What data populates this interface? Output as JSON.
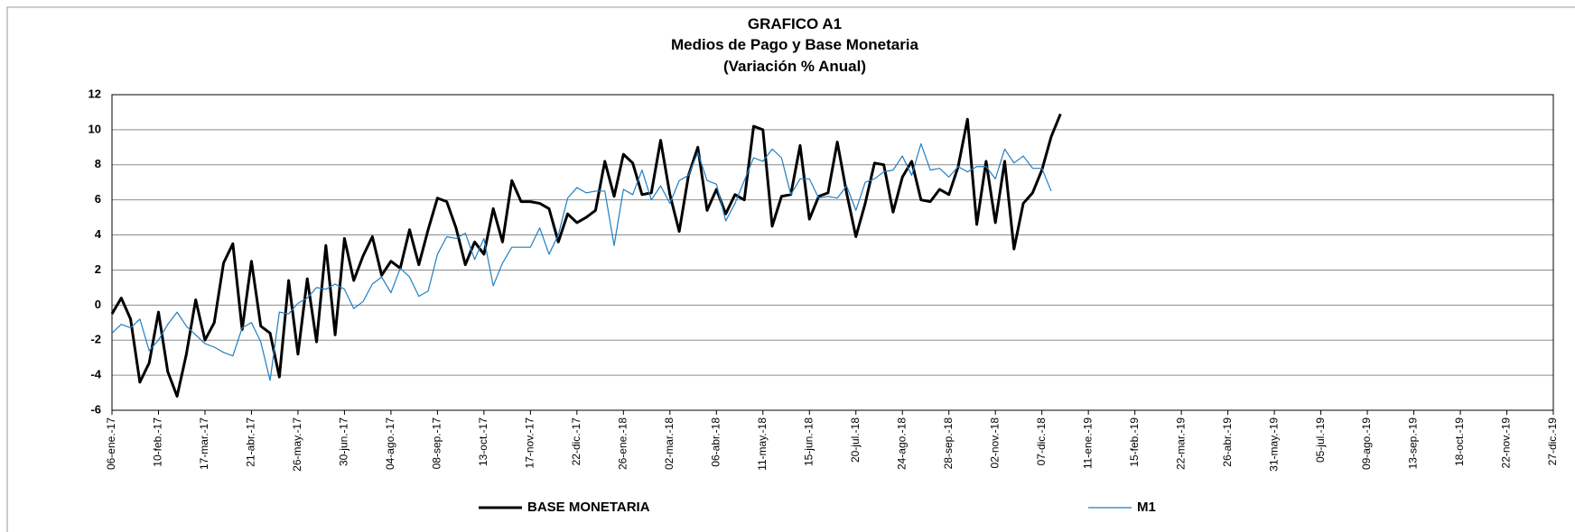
{
  "chart_data": {
    "type": "line",
    "title": [
      "GRAFICO A1",
      "Medios de Pago y Base Monetaria",
      "(Variación % Anual)"
    ],
    "categories": [
      "06-ene.-17",
      null,
      null,
      null,
      null,
      "10-feb.-17",
      null,
      null,
      null,
      null,
      "17-mar.-17",
      null,
      null,
      null,
      null,
      "21-abr.-17",
      null,
      null,
      null,
      null,
      "26-may.-17",
      null,
      null,
      null,
      null,
      "30-jun.-17",
      null,
      null,
      null,
      null,
      "04-ago.-17",
      null,
      null,
      null,
      null,
      "08-sep.-17",
      null,
      null,
      null,
      null,
      "13-oct.-17",
      null,
      null,
      null,
      null,
      "17-nov.-17",
      null,
      null,
      null,
      null,
      "22-dic.-17",
      null,
      null,
      null,
      null,
      "26-ene.-18",
      null,
      null,
      null,
      null,
      "02-mar.-18",
      null,
      null,
      null,
      null,
      "06-abr.-18",
      null,
      null,
      null,
      null,
      "11-may.-18",
      null,
      null,
      null,
      null,
      "15-jun.-18",
      null,
      null,
      null,
      null,
      "20-jul.-18",
      null,
      null,
      null,
      null,
      "24-ago.-18",
      null,
      null,
      null,
      null,
      "28-sep.-18",
      null,
      null,
      null,
      null,
      "02-nov.-18",
      null,
      null,
      null,
      null,
      "07-dic.-18",
      null,
      null,
      null,
      null,
      "11-ene.-19",
      null,
      null,
      null,
      null,
      "15-feb.-19",
      null,
      null,
      null,
      null,
      "22-mar.-19",
      null,
      null,
      null,
      null,
      "26-abr.-19",
      null,
      null,
      null,
      null,
      "31-may.-19",
      null,
      null,
      null,
      null,
      "05-jul.-19",
      null,
      null,
      null,
      null,
      "09-ago.-19",
      null,
      null,
      null,
      null,
      "13-sep.-19",
      null,
      null,
      null,
      null,
      "18-oct.-19",
      null,
      null,
      null,
      null,
      "22-nov.-19",
      null,
      null,
      null,
      null,
      "27-dic.-19"
    ],
    "series": [
      {
        "name": "BASE MONETARIA",
        "color": "#000000",
        "width": 3,
        "values": [
          -0.5,
          0.4,
          -0.8,
          -4.4,
          -3.3,
          -0.4,
          -3.8,
          -5.2,
          -2.8,
          0.3,
          -2.0,
          -1.0,
          2.4,
          3.5,
          -1.4,
          2.5,
          -1.2,
          -1.6,
          -4.1,
          1.4,
          -2.8,
          1.5,
          -2.1,
          3.4,
          -1.7,
          3.8,
          1.4,
          2.8,
          3.9,
          1.7,
          2.5,
          2.1,
          4.3,
          2.3,
          4.3,
          6.1,
          5.9,
          4.4,
          2.3,
          3.6,
          2.9,
          5.5,
          3.6,
          7.1,
          5.9,
          5.9,
          5.8,
          5.5,
          3.6,
          5.2,
          4.7,
          5.0,
          5.4,
          8.2,
          6.2,
          8.6,
          8.1,
          6.3,
          6.4,
          9.4,
          6.3,
          4.2,
          7.4,
          9.0,
          5.4,
          6.6,
          5.2,
          6.3,
          6.0,
          10.2,
          10.0,
          4.5,
          6.2,
          6.3,
          9.1,
          4.9,
          6.2,
          6.4,
          9.3,
          6.4,
          3.9,
          5.8,
          8.1,
          8.0,
          5.3,
          7.3,
          8.2,
          6.0,
          5.9,
          6.6,
          6.3,
          7.9,
          10.6,
          4.6,
          8.2,
          4.7,
          8.2,
          3.2,
          5.8,
          6.4,
          7.7,
          9.6,
          10.9,
          null,
          null,
          null,
          null,
          null,
          null,
          null,
          null,
          null,
          null,
          null,
          null,
          null,
          null,
          null,
          null,
          null,
          null,
          null,
          null,
          null,
          null,
          null,
          null,
          null,
          null,
          null,
          null,
          null,
          null,
          null,
          null,
          null,
          null,
          null,
          null,
          null,
          null,
          null,
          null,
          null,
          null,
          null,
          null,
          null,
          null,
          null,
          null,
          null,
          null,
          null,
          null,
          null
        ]
      },
      {
        "name": "M1",
        "color": "#1f7fc4",
        "width": 1.2,
        "values": [
          -1.6,
          -1.1,
          -1.3,
          -0.8,
          -2.6,
          -2.0,
          -1.1,
          -0.4,
          -1.2,
          -1.7,
          -2.2,
          -2.4,
          -2.7,
          -2.9,
          -1.3,
          -1.0,
          -2.1,
          -4.3,
          -0.4,
          -0.5,
          0.1,
          0.4,
          1.0,
          0.9,
          1.2,
          0.9,
          -0.2,
          0.2,
          1.2,
          1.6,
          0.7,
          2.1,
          1.6,
          0.5,
          0.8,
          2.9,
          3.9,
          3.8,
          4.1,
          2.6,
          3.8,
          1.1,
          2.4,
          3.3,
          3.3,
          3.3,
          4.4,
          2.9,
          4.0,
          6.1,
          6.7,
          6.4,
          6.5,
          6.5,
          3.4,
          6.6,
          6.3,
          7.7,
          6.0,
          6.8,
          5.8,
          7.1,
          7.4,
          8.7,
          7.1,
          6.9,
          4.8,
          5.8,
          7.1,
          8.4,
          8.2,
          8.9,
          8.4,
          6.3,
          7.2,
          7.2,
          6.1,
          6.2,
          6.1,
          6.8,
          5.4,
          7.0,
          7.2,
          7.6,
          7.7,
          8.5,
          7.4,
          9.2,
          7.7,
          7.8,
          7.3,
          7.9,
          7.6,
          7.9,
          7.9,
          7.2,
          8.9,
          8.1,
          8.5,
          7.8,
          7.8,
          6.5,
          null,
          null,
          null,
          null,
          null,
          null,
          null,
          null,
          null,
          null,
          null,
          null,
          null,
          null,
          null,
          null,
          null,
          null,
          null,
          null,
          null,
          null,
          null,
          null,
          null,
          null,
          null,
          null,
          null,
          null,
          null,
          null,
          null,
          null,
          null,
          null,
          null,
          null,
          null,
          null,
          null,
          null,
          null,
          null,
          null,
          null,
          null,
          null,
          null,
          null,
          null,
          null,
          null,
          null
        ]
      }
    ],
    "ylim": [
      -6,
      12
    ],
    "yticks": [
      -6,
      -4,
      -2,
      0,
      2,
      4,
      6,
      8,
      10,
      12
    ],
    "grid": true,
    "legend": "bottom"
  }
}
